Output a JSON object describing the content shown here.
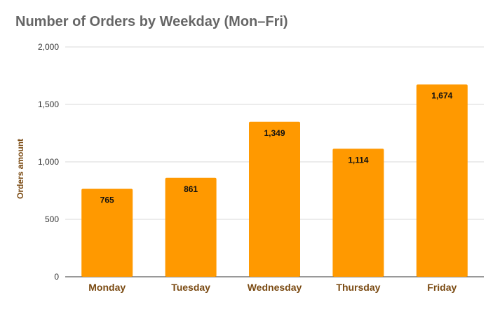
{
  "chart_data": {
    "type": "bar",
    "title": "Number of Orders by Weekday (Mon–Fri)",
    "xlabel": "",
    "ylabel": "Orders amount",
    "categories": [
      "Monday",
      "Tuesday",
      "Wednesday",
      "Thursday",
      "Friday"
    ],
    "values": [
      765,
      861,
      1349,
      1114,
      1674
    ],
    "value_labels": [
      "765",
      "861",
      "1,349",
      "1,114",
      "1,674"
    ],
    "ylim": [
      0,
      2000
    ],
    "yticks": [
      0,
      500,
      1000,
      1500,
      2000
    ],
    "ytick_labels": [
      "0",
      "500",
      "1,000",
      "1,500",
      "2,000"
    ],
    "grid": true,
    "legend": "none",
    "colors": {
      "bar": "#FF9900",
      "title": "#666666",
      "axis_text": "#7a4a12",
      "grid": "#d9d9d9"
    }
  }
}
